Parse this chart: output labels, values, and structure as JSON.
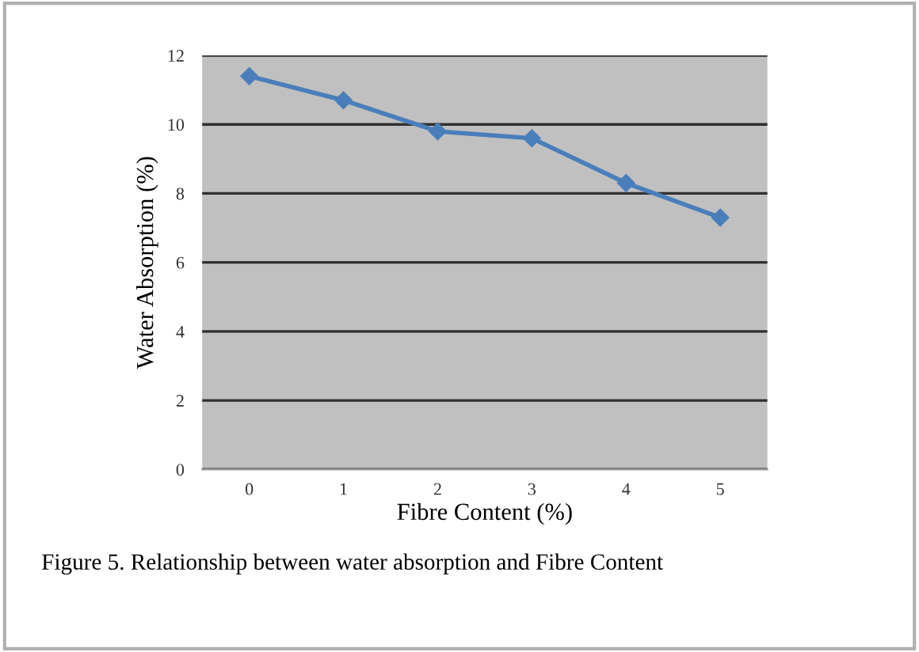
{
  "chart_data": {
    "type": "line",
    "xlabel": "Fibre Content (%)",
    "ylabel": "Water Absorption (%)",
    "categories": [
      "0",
      "1",
      "2",
      "3",
      "4",
      "5"
    ],
    "series": [
      {
        "color": "#4a7ebb",
        "values": [
          11.4,
          10.7,
          9.8,
          9.6,
          8.3,
          7.3
        ]
      }
    ],
    "ylim": [
      0,
      12
    ],
    "yticks": [
      0,
      2,
      4,
      6,
      8,
      10,
      12
    ],
    "grid": "y",
    "marker": "diamond",
    "line_style": "solid",
    "annotations": [
      "Figure 5. Relationship between water absorption and Fibre Content"
    ]
  }
}
